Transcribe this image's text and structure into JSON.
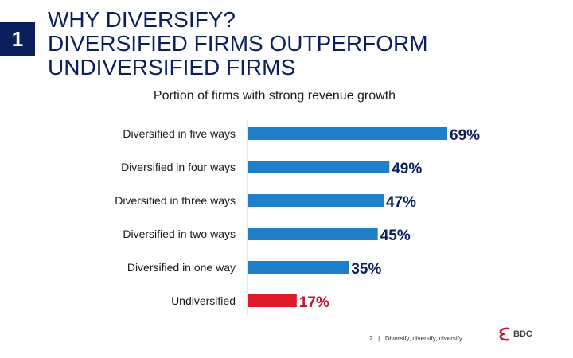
{
  "slide_number": "1",
  "title_lines": [
    "WHY DIVERSIFY?",
    "DIVERSIFIED FIRMS OUTPERFORM",
    "UNDIVERSIFIED FIRMS"
  ],
  "footer": {
    "page": "2",
    "separator": "|",
    "text": "Diversify, diversify, diversify…"
  },
  "logo": {
    "text": "BDC"
  },
  "colors": {
    "primary_bar": "#1f7fc8",
    "highlight_bar": "#e0192b",
    "title": "#0b1f5c",
    "label_blue": "#0b1f5c",
    "label_red": "#c4122f"
  },
  "chart_data": {
    "type": "bar",
    "orientation": "horizontal",
    "title": "Portion of firms with strong revenue growth",
    "categories": [
      "Diversified in five ways",
      "Diversified in four ways",
      "Diversified in three ways",
      "Diversified in two ways",
      "Diversified in one way",
      "Undiversified"
    ],
    "values": [
      69,
      49,
      47,
      45,
      35,
      17
    ],
    "value_labels": [
      "69%",
      "49%",
      "47%",
      "45%",
      "35%",
      "17%"
    ],
    "highlight": [
      false,
      false,
      false,
      false,
      false,
      true
    ],
    "xlim": [
      0,
      70
    ],
    "grid": false,
    "legend": "none"
  }
}
